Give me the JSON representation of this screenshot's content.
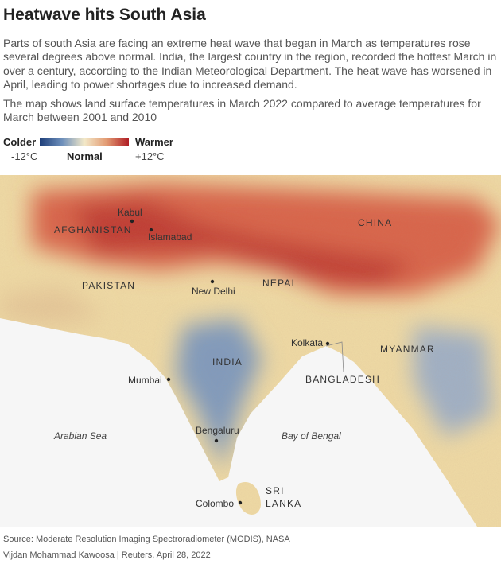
{
  "header": {
    "title": "Heatwave hits South Asia",
    "paragraphs": [
      "Parts of south Asia are facing an extreme heat wave that began in March as temperatures rose several degrees above normal. India, the largest country in the region, recorded the hottest March in over a century, according to the Indian Meteorological Department. The heat wave has worsened in April, leading to power shortages due to increased demand.",
      "The map shows land surface temperatures in March 2022 compared to average temperatures for March between 2001 and 2010"
    ]
  },
  "legend": {
    "colder": "Colder",
    "warmer": "Warmer",
    "min": "-12°C",
    "normal": "Normal",
    "max": "+12°C"
  },
  "map": {
    "labels": {
      "kabul": "Kabul",
      "afghanistan": "AFGHANISTAN",
      "islamabad": "Islamabad",
      "china": "CHINA",
      "pakistan": "PAKISTAN",
      "new_delhi": "New Delhi",
      "nepal": "NEPAL",
      "kolkata": "Kolkata",
      "myanmar": "MYANMAR",
      "india": "INDIA",
      "bangladesh": "BANGLADESH",
      "mumbai": "Mumbai",
      "arabian_sea": "Arabian Sea",
      "bay_of_bengal": "Bay of Bengal",
      "bengaluru": "Bengaluru",
      "sri_lanka": [
        "SRI",
        "LANKA"
      ],
      "colombo": "Colombo"
    }
  },
  "footer": {
    "source": "Source: Moderate Resolution Imaging Spectroradiometer (MODIS), NASA",
    "credit": "Vijdan Mohammad Kawoosa | Reuters, April 28, 2022"
  }
}
